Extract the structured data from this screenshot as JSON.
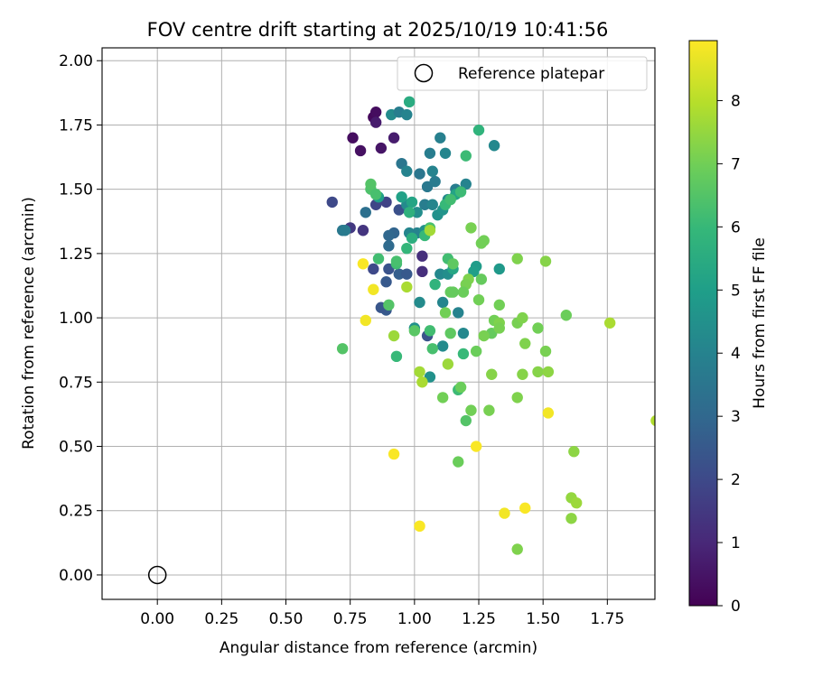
{
  "chart_data": {
    "type": "scatter",
    "title": "FOV centre drift starting at 2025/10/19 10:41:56",
    "xlabel": "Angular distance from reference (arcmin)",
    "ylabel": "Rotation from reference (arcmin)",
    "xlim": [
      -0.215,
      1.935
    ],
    "ylim": [
      -0.095,
      2.05
    ],
    "grid": true,
    "xticks": [
      0.0,
      0.25,
      0.5,
      0.75,
      1.0,
      1.25,
      1.5,
      1.75
    ],
    "xtick_labels": [
      "0.00",
      "0.25",
      "0.50",
      "0.75",
      "1.00",
      "1.25",
      "1.50",
      "1.75"
    ],
    "yticks": [
      0.0,
      0.25,
      0.5,
      0.75,
      1.0,
      1.25,
      1.5,
      1.75,
      2.0
    ],
    "ytick_labels": [
      "0.00",
      "0.25",
      "0.50",
      "0.75",
      "1.00",
      "1.25",
      "1.50",
      "1.75",
      "2.00"
    ],
    "legend": {
      "label": "Reference platepar",
      "location": "top-right"
    },
    "reference_point": {
      "x": 0.0,
      "y": 0.0
    },
    "colorbar": {
      "label": "Hours from first FF file",
      "range": [
        0,
        8.95
      ],
      "ticks": [
        0,
        1,
        2,
        3,
        4,
        5,
        6,
        7,
        8
      ],
      "tick_labels": [
        "0",
        "1",
        "2",
        "3",
        "4",
        "5",
        "6",
        "7",
        "8"
      ],
      "colormap": [
        "#440154",
        "#482878",
        "#3e4989",
        "#31688e",
        "#26828e",
        "#1f9e89",
        "#35b779",
        "#6ece58",
        "#b5de2b",
        "#fde725"
      ]
    },
    "points": [
      [
        0.84,
        1.78,
        0.2
      ],
      [
        0.85,
        1.8,
        0.3
      ],
      [
        0.76,
        1.7,
        0.3
      ],
      [
        0.79,
        1.65,
        0.4
      ],
      [
        0.87,
        1.66,
        0.5
      ],
      [
        0.92,
        1.7,
        0.7
      ],
      [
        0.85,
        1.76,
        0.7
      ],
      [
        0.68,
        1.45,
        2.0
      ],
      [
        0.75,
        1.35,
        1.5
      ],
      [
        0.8,
        1.34,
        1.4
      ],
      [
        0.89,
        1.45,
        1.8
      ],
      [
        0.85,
        1.44,
        1.9
      ],
      [
        0.94,
        1.42,
        2.2
      ],
      [
        0.84,
        1.19,
        2.0
      ],
      [
        0.9,
        1.19,
        2.3
      ],
      [
        0.89,
        1.14,
        2.5
      ],
      [
        0.89,
        1.03,
        2.5
      ],
      [
        0.87,
        1.04,
        2.4
      ],
      [
        0.94,
        1.17,
        2.7
      ],
      [
        0.97,
        1.17,
        2.5
      ],
      [
        1.03,
        1.24,
        1.2
      ],
      [
        1.03,
        1.18,
        1.2
      ],
      [
        1.05,
        0.93,
        2.3
      ],
      [
        0.92,
        1.33,
        2.9
      ],
      [
        0.9,
        1.32,
        3.0
      ],
      [
        0.9,
        1.28,
        3.1
      ],
      [
        0.81,
        1.41,
        3.3
      ],
      [
        0.72,
        1.34,
        3.6
      ],
      [
        0.73,
        1.34,
        3.7
      ],
      [
        0.91,
        1.79,
        4.3
      ],
      [
        0.94,
        1.8,
        3.8
      ],
      [
        0.97,
        1.79,
        4.0
      ],
      [
        0.95,
        1.6,
        3.5
      ],
      [
        0.97,
        1.57,
        4.0
      ],
      [
        1.02,
        1.56,
        3.5
      ],
      [
        1.06,
        1.64,
        3.8
      ],
      [
        1.1,
        1.7,
        3.9
      ],
      [
        1.12,
        1.64,
        4.1
      ],
      [
        1.05,
        1.51,
        3.6
      ],
      [
        1.08,
        1.53,
        3.7
      ],
      [
        1.07,
        1.57,
        4.0
      ],
      [
        1.13,
        1.46,
        4.3
      ],
      [
        1.16,
        1.5,
        3.8
      ],
      [
        1.2,
        1.52,
        4.0
      ],
      [
        1.31,
        1.67,
        4.2
      ],
      [
        1.04,
        1.44,
        3.8
      ],
      [
        1.07,
        1.44,
        4.1
      ],
      [
        1.09,
        1.4,
        4.5
      ],
      [
        1.11,
        1.42,
        4.6
      ],
      [
        1.01,
        1.41,
        4.4
      ],
      [
        0.97,
        1.44,
        4.3
      ],
      [
        0.98,
        1.33,
        4.1
      ],
      [
        1.01,
        1.33,
        4.0
      ],
      [
        1.04,
        1.34,
        4.5
      ],
      [
        1.1,
        1.17,
        4.2
      ],
      [
        1.13,
        1.17,
        4.4
      ],
      [
        1.11,
        1.06,
        4.1
      ],
      [
        1.02,
        1.06,
        4.3
      ],
      [
        1.0,
        0.96,
        4.5
      ],
      [
        1.17,
        1.02,
        4.0
      ],
      [
        1.11,
        0.89,
        4.3
      ],
      [
        1.06,
        0.77,
        4.5
      ],
      [
        1.19,
        0.94,
        4.2
      ],
      [
        1.33,
        1.19,
        4.8
      ],
      [
        1.24,
        1.2,
        4.9
      ],
      [
        1.23,
        1.18,
        5.0
      ],
      [
        1.15,
        1.19,
        5.3
      ],
      [
        1.16,
        1.48,
        5.2
      ],
      [
        0.99,
        1.45,
        5.2
      ],
      [
        0.95,
        1.47,
        5.1
      ],
      [
        0.86,
        1.47,
        5.0
      ],
      [
        0.98,
        1.84,
        5.5
      ],
      [
        1.25,
        1.73,
        5.8
      ],
      [
        1.2,
        1.63,
        6.1
      ],
      [
        1.12,
        1.44,
        6.0
      ],
      [
        1.14,
        1.46,
        6.2
      ],
      [
        1.18,
        1.49,
        6.1
      ],
      [
        0.98,
        1.41,
        5.7
      ],
      [
        0.97,
        1.27,
        5.9
      ],
      [
        0.99,
        1.31,
        5.6
      ],
      [
        1.04,
        1.32,
        6.0
      ],
      [
        1.06,
        1.35,
        6.3
      ],
      [
        1.08,
        1.13,
        5.8
      ],
      [
        1.06,
        0.95,
        6.2
      ],
      [
        1.19,
        0.86,
        6.0
      ],
      [
        1.17,
        0.72,
        6.1
      ],
      [
        1.2,
        0.6,
        6.5
      ],
      [
        0.93,
        0.85,
        6.0
      ],
      [
        1.07,
        0.88,
        6.3
      ],
      [
        1.0,
        0.95,
        6.6
      ],
      [
        1.13,
        1.23,
        6.2
      ],
      [
        1.15,
        1.21,
        6.7
      ],
      [
        0.83,
        1.5,
        6.4
      ],
      [
        0.85,
        1.48,
        6.3
      ],
      [
        0.83,
        1.52,
        6.5
      ],
      [
        0.93,
        1.21,
        6.2
      ],
      [
        0.93,
        1.22,
        6.3
      ],
      [
        0.9,
        1.05,
        6.5
      ],
      [
        0.86,
        1.23,
        6.2
      ],
      [
        0.72,
        0.88,
        6.5
      ],
      [
        1.14,
        1.1,
        6.8
      ],
      [
        1.26,
        1.15,
        6.8
      ],
      [
        1.3,
        0.94,
        6.8
      ],
      [
        1.26,
        1.29,
        7.0
      ],
      [
        1.22,
        1.35,
        7.1
      ],
      [
        1.27,
        1.3,
        7.0
      ],
      [
        1.21,
        1.15,
        7.2
      ],
      [
        1.25,
        1.07,
        7.0
      ],
      [
        1.2,
        1.13,
        7.1
      ],
      [
        1.19,
        1.1,
        6.9
      ],
      [
        1.15,
        1.1,
        6.8
      ],
      [
        1.12,
        1.02,
        7.0
      ],
      [
        1.14,
        0.94,
        6.7
      ],
      [
        1.24,
        0.87,
        6.9
      ],
      [
        1.31,
        0.99,
        7.0
      ],
      [
        1.33,
        0.98,
        7.2
      ],
      [
        1.33,
        0.96,
        7.1
      ],
      [
        1.33,
        1.05,
        7.0
      ],
      [
        1.27,
        0.93,
        7.1
      ],
      [
        1.3,
        0.78,
        7.3
      ],
      [
        1.18,
        0.73,
        6.9
      ],
      [
        1.11,
        0.69,
        7.0
      ],
      [
        1.17,
        0.44,
        6.9
      ],
      [
        1.22,
        0.64,
        7.0
      ],
      [
        1.29,
        0.64,
        7.1
      ],
      [
        1.4,
        0.69,
        7.2
      ],
      [
        1.42,
        0.78,
        7.3
      ],
      [
        1.4,
        0.98,
        7.1
      ],
      [
        1.42,
        1.0,
        7.2
      ],
      [
        1.4,
        1.23,
        7.2
      ],
      [
        1.51,
        1.22,
        7.3
      ],
      [
        1.48,
        0.96,
        7.0
      ],
      [
        1.51,
        0.87,
        7.1
      ],
      [
        1.43,
        0.9,
        7.2
      ],
      [
        1.48,
        0.79,
        7.3
      ],
      [
        1.52,
        0.79,
        7.4
      ],
      [
        1.4,
        0.1,
        7.2
      ],
      [
        1.62,
        0.48,
        7.4
      ],
      [
        1.61,
        0.3,
        7.5
      ],
      [
        1.63,
        0.28,
        7.6
      ],
      [
        1.61,
        0.22,
        7.4
      ],
      [
        1.59,
        1.01,
        6.9
      ],
      [
        1.76,
        0.98,
        7.8
      ],
      [
        1.94,
        0.6,
        7.9
      ],
      [
        1.02,
        0.79,
        7.7
      ],
      [
        1.03,
        0.75,
        7.8
      ],
      [
        0.92,
        0.93,
        7.6
      ],
      [
        0.97,
        1.12,
        7.8
      ],
      [
        1.06,
        1.34,
        7.7
      ],
      [
        1.13,
        0.82,
        7.6
      ],
      [
        0.8,
        1.21,
        8.9
      ],
      [
        0.84,
        1.11,
        8.8
      ],
      [
        0.81,
        0.99,
        8.8
      ],
      [
        0.92,
        0.47,
        8.9
      ],
      [
        1.02,
        0.19,
        8.9
      ],
      [
        1.24,
        0.5,
        8.9
      ],
      [
        1.35,
        0.24,
        8.8
      ],
      [
        1.43,
        0.26,
        8.9
      ],
      [
        1.52,
        0.63,
        8.8
      ]
    ]
  }
}
